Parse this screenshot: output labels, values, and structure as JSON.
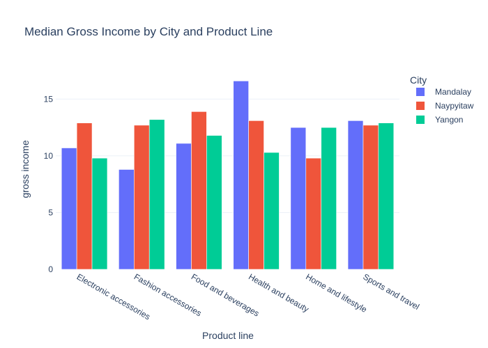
{
  "chart_data": {
    "type": "bar",
    "title": "Median Gross Income by City and Product Line",
    "xlabel": "Product line",
    "ylabel": "gross income",
    "ylim": [
      0,
      17.6
    ],
    "yticks": [
      0,
      5,
      10,
      15
    ],
    "grid": true,
    "legend_title": "City",
    "legend_position": "top-right",
    "categories": [
      "Electronic accessories",
      "Fashion accessories",
      "Food and beverages",
      "Health and beauty",
      "Home and lifestyle",
      "Sports and travel"
    ],
    "series": [
      {
        "name": "Mandalay",
        "color": "#636efa",
        "values": [
          10.7,
          8.8,
          11.1,
          16.6,
          12.5,
          13.1
        ]
      },
      {
        "name": "Naypyitaw",
        "color": "#ef553b",
        "values": [
          12.9,
          12.7,
          13.9,
          13.1,
          9.8,
          12.7
        ]
      },
      {
        "name": "Yangon",
        "color": "#00cc96",
        "values": [
          9.8,
          13.2,
          11.8,
          10.3,
          12.5,
          12.9
        ]
      }
    ]
  }
}
